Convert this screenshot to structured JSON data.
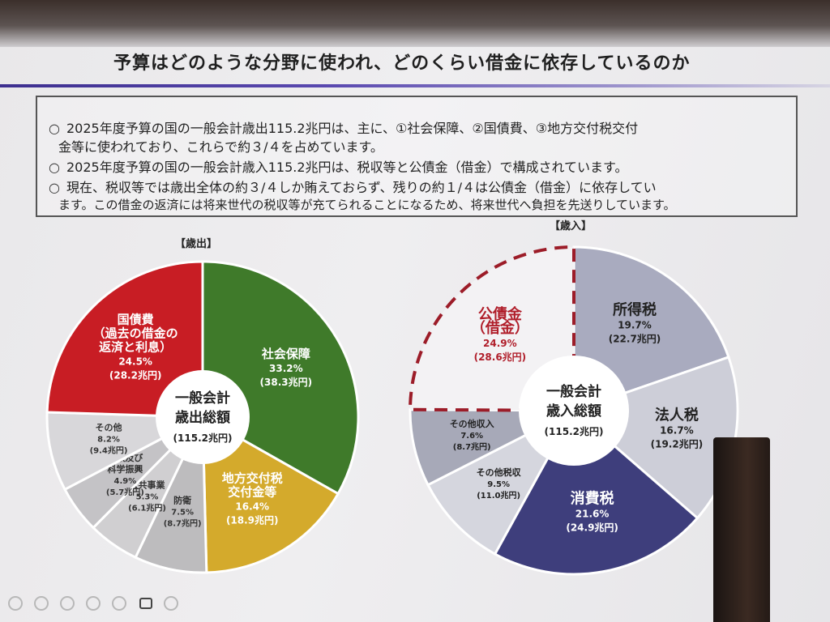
{
  "title": "予算はどのような分野に使われ、どのくらい借金に依存しているのか",
  "summary": [
    {
      "bullet": "○",
      "text": "2025年度予算の国の一般会計歳出115.2兆円は、主に、①社会保障、②国債費、③地方交付税交付"
    },
    {
      "bullet": "",
      "text": "金等に使われており、これらで約３/４を占めています。"
    },
    {
      "bullet": "○",
      "text": "2025年度予算の国の一般会計歳入115.2兆円は、税収等と公債金（借金）で構成されています。"
    },
    {
      "bullet": "○",
      "text": "現在、税収等では歳出全体の約３/４しか賄えておらず、残りの約１/４は公債金（借金）に依存してい"
    },
    {
      "bullet": "",
      "text": "ます。この借金の返済には将来世代の税収等が充てられることになるため、将来世代へ負担を先送りしています。"
    }
  ],
  "chart_data": [
    {
      "type": "pie",
      "title": "【歳出】",
      "center_label": [
        "一般会計",
        "歳出総額",
        "(115.2兆円)"
      ],
      "slices": [
        {
          "label": [
            "社会保障"
          ],
          "pct": "33.2%",
          "amount": "(38.3兆円)",
          "value": 33.2,
          "color": "#3f7a2a",
          "text_color": "#ffffff"
        },
        {
          "label": [
            "地方交付税",
            "交付金等"
          ],
          "pct": "16.4%",
          "amount": "(18.9兆円)",
          "value": 16.4,
          "color": "#d4aa2c",
          "text_color": "#ffffff"
        },
        {
          "label": [
            "防衛"
          ],
          "pct": "7.5%",
          "amount": "(8.7兆円)",
          "value": 7.5,
          "color": "#bdbcbe",
          "text_color": "#333333"
        },
        {
          "label": [
            "公共事業"
          ],
          "pct": "5.3%",
          "amount": "(6.1兆円)",
          "value": 5.3,
          "color": "#d0cfd1",
          "text_color": "#333333"
        },
        {
          "label": [
            "文教及び",
            "科学振興"
          ],
          "pct": "4.9%",
          "amount": "(5.7兆円)",
          "value": 4.9,
          "color": "#c4c3c6",
          "text_color": "#333333"
        },
        {
          "label": [
            "その他"
          ],
          "pct": "8.2%",
          "amount": "(9.4兆円)",
          "value": 8.2,
          "color": "#d8d7da",
          "text_color": "#333333"
        },
        {
          "label": [
            "国債費",
            "（過去の借金の",
            "返済と利息）"
          ],
          "pct": "24.5%",
          "amount": "(28.2兆円)",
          "value": 24.5,
          "color": "#c81d24",
          "text_color": "#ffffff"
        }
      ]
    },
    {
      "type": "pie",
      "title": "【歳入】",
      "center_label": [
        "一般会計",
        "歳入総額",
        "(115.2兆円)"
      ],
      "slices": [
        {
          "label": [
            "所得税"
          ],
          "pct": "19.7%",
          "amount": "(22.7兆円)",
          "value": 19.7,
          "color": "#a9abbf",
          "text_color": "#222222"
        },
        {
          "label": [
            "法人税"
          ],
          "pct": "16.7%",
          "amount": "(19.2兆円)",
          "value": 16.7,
          "color": "#cdced8",
          "text_color": "#222222"
        },
        {
          "label": [
            "消費税"
          ],
          "pct": "21.6%",
          "amount": "(24.9兆円)",
          "value": 21.6,
          "color": "#3e3e7c",
          "text_color": "#ffffff"
        },
        {
          "label": [
            "その他税収"
          ],
          "pct": "9.5%",
          "amount": "(11.0兆円)",
          "value": 9.5,
          "color": "#d5d6de",
          "text_color": "#222222"
        },
        {
          "label": [
            "その他収入"
          ],
          "pct": "7.6%",
          "amount": "(8.7兆円)",
          "value": 7.6,
          "color": "#a7a9b8",
          "text_color": "#222222"
        },
        {
          "label": [
            "公債金",
            "（借金）"
          ],
          "pct": "24.9%",
          "amount": "(28.6兆円)",
          "value": 24.9,
          "color": "none",
          "text_color": "#b01e2a",
          "dashed": true
        }
      ]
    }
  ]
}
